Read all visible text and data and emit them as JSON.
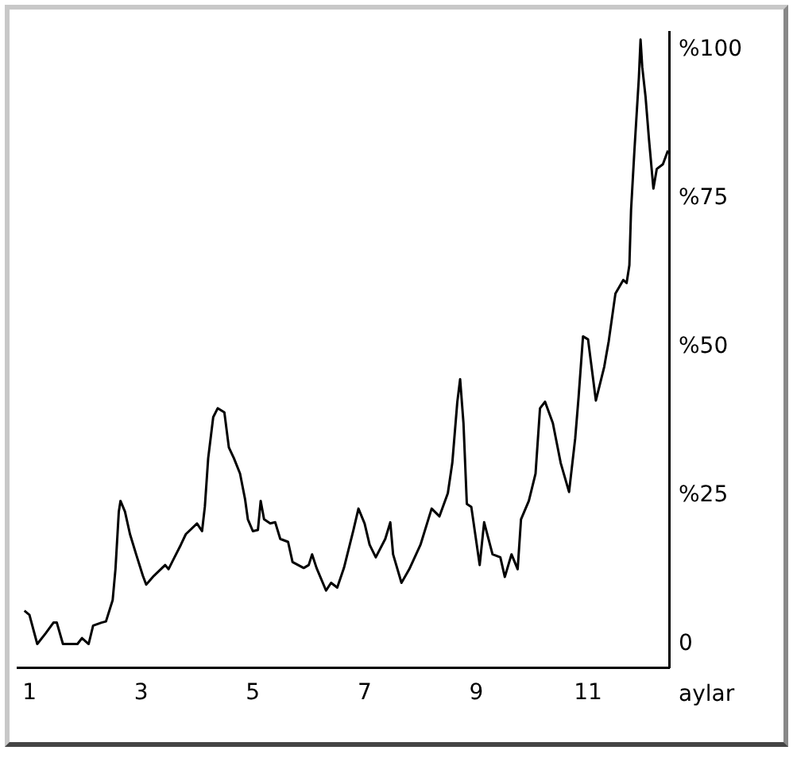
{
  "chart_data": {
    "type": "line",
    "xlabel": "aylar",
    "color": "#000000",
    "x": [
      0.91,
      1.0,
      1.14,
      1.29,
      1.43,
      1.49,
      1.6,
      1.71,
      1.86,
      1.94,
      2.06,
      2.14,
      2.29,
      2.37,
      2.49,
      2.54,
      2.6,
      2.63,
      2.71,
      2.8,
      2.91,
      3.03,
      3.09,
      3.23,
      3.43,
      3.49,
      3.57,
      3.71,
      3.8,
      4.0,
      4.09,
      4.14,
      4.2,
      4.29,
      4.37,
      4.49,
      4.57,
      4.66,
      4.77,
      4.86,
      4.91,
      5.0,
      5.09,
      5.14,
      5.2,
      5.31,
      5.4,
      5.49,
      5.63,
      5.71,
      5.91,
      6.0,
      6.06,
      6.14,
      6.31,
      6.4,
      6.51,
      6.63,
      6.8,
      6.89,
      7.0,
      7.09,
      7.2,
      7.37,
      7.46,
      7.51,
      7.66,
      7.8,
      8.0,
      8.2,
      8.34,
      8.49,
      8.57,
      8.66,
      8.71,
      8.77,
      8.83,
      8.91,
      9.06,
      9.14,
      9.29,
      9.43,
      9.51,
      9.63,
      9.74,
      9.8,
      9.94,
      10.06,
      10.14,
      10.23,
      10.37,
      10.51,
      10.66,
      10.77,
      10.83,
      10.91,
      11.0,
      11.14,
      11.29,
      11.37,
      11.49,
      11.63,
      11.69,
      11.74,
      11.77,
      11.83,
      11.91,
      11.94,
      11.97,
      12.03,
      12.09,
      12.17,
      12.23,
      12.34,
      12.43
    ],
    "values": [
      5.6,
      4.9,
      0,
      1.8,
      3.6,
      3.6,
      0,
      0,
      0,
      1.0,
      0,
      3.1,
      3.6,
      3.8,
      7.4,
      12.6,
      22.3,
      24.1,
      22.3,
      18.5,
      15.1,
      11.5,
      10.0,
      11.5,
      13.3,
      12.6,
      14.1,
      16.7,
      18.5,
      20.3,
      19.0,
      23.1,
      31.3,
      38.2,
      39.7,
      39.0,
      33.1,
      31.3,
      28.7,
      24.4,
      21.0,
      19.0,
      19.2,
      24.1,
      21.0,
      20.3,
      20.5,
      17.7,
      17.2,
      13.8,
      12.8,
      13.3,
      15.1,
      12.8,
      9.0,
      10.3,
      9.5,
      12.8,
      19.2,
      22.8,
      20.3,
      16.7,
      14.6,
      17.7,
      20.5,
      15.1,
      10.3,
      12.6,
      16.7,
      22.8,
      21.5,
      25.4,
      30.5,
      40.8,
      44.6,
      37.2,
      23.6,
      23.1,
      13.3,
      20.5,
      15.1,
      14.6,
      11.3,
      15.1,
      12.6,
      21.0,
      24.1,
      28.7,
      39.7,
      40.8,
      37.2,
      30.5,
      25.6,
      34.6,
      41.5,
      51.8,
      51.3,
      41.0,
      46.7,
      51.0,
      59.0,
      61.3,
      60.8,
      63.8,
      73.1,
      83.1,
      95.4,
      101.8,
      97.2,
      92.1,
      85.1,
      76.7,
      80.0,
      80.8,
      83.1
    ],
    "xlim": [
      0.8,
      12.45
    ],
    "xticks": [
      1,
      3,
      5,
      7,
      9,
      11
    ],
    "ylim": [
      -4,
      103
    ],
    "yticks": [
      0,
      {
        "value": 25,
        "label": "%25"
      },
      {
        "value": 50,
        "label": "%50"
      },
      {
        "value": 75,
        "label": "%75"
      },
      {
        "value": 100,
        "label": "%100"
      }
    ],
    "grid": false,
    "legend": false,
    "marker": "none",
    "line_style": "solid"
  }
}
